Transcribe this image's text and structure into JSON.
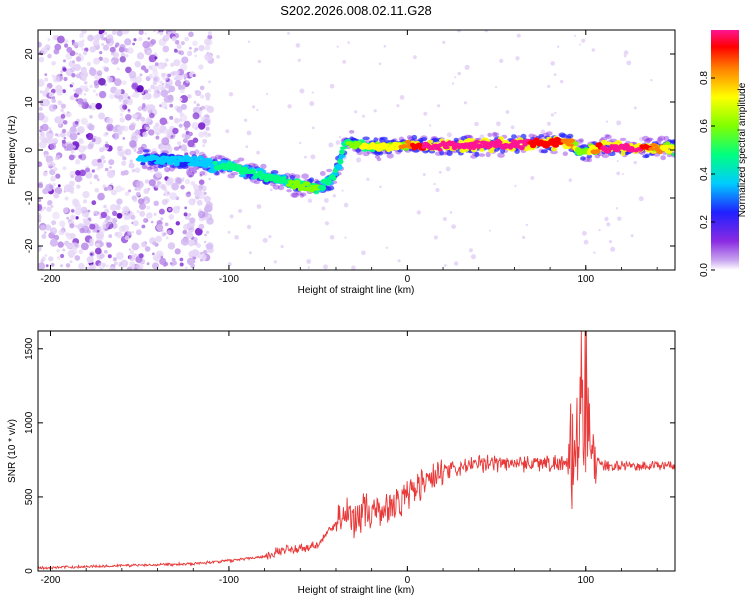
{
  "title": "S202.2026.008.02.11.G28",
  "chart_data": [
    {
      "type": "heatmap",
      "title": "S202.2026.008.02.11.G28",
      "xlabel": "Height of straight line (km)",
      "ylabel": "Frequency (Hz)",
      "xlim": [
        -207,
        150
      ],
      "ylim": [
        -25,
        25
      ],
      "xticks": [
        "-200",
        "-100",
        "0",
        "100"
      ],
      "xtick_values": [
        -200,
        -100,
        0,
        100
      ],
      "yticks": [
        "20",
        "10",
        "0",
        "-10",
        "-20"
      ],
      "ytick_values": [
        20,
        10,
        0,
        -10,
        -20
      ],
      "colorbar": {
        "label": "Normalized spectral amplitude",
        "range": [
          0,
          1
        ],
        "ticks": [
          "0.0",
          "0.2",
          "0.4",
          "0.6",
          "0.8"
        ],
        "tick_values": [
          0.0,
          0.2,
          0.4,
          0.6,
          0.8
        ]
      },
      "ridge": {
        "x": [
          -150,
          -130,
          -110,
          -100,
          -90,
          -80,
          -70,
          -60,
          -50,
          -42,
          -38,
          -35,
          -32,
          -25,
          -15,
          -5,
          0,
          10,
          20,
          40,
          60,
          80,
          92,
          97,
          100,
          110,
          130,
          150
        ],
        "freq": [
          -2,
          -2,
          -3,
          -3.5,
          -4.5,
          -5.5,
          -6.5,
          -7.5,
          -8,
          -6,
          -3,
          2,
          1.5,
          1,
          0.5,
          0.8,
          1,
          0.8,
          0.8,
          1,
          1.2,
          1.5,
          1.5,
          -0.5,
          -0.5,
          0.5,
          0.5,
          0.2
        ],
        "amplitude": [
          0.3,
          0.3,
          0.35,
          0.4,
          0.4,
          0.45,
          0.45,
          0.55,
          0.5,
          0.4,
          0.35,
          0.45,
          0.5,
          0.6,
          0.65,
          0.7,
          0.8,
          0.95,
          0.95,
          0.95,
          0.95,
          0.9,
          0.8,
          0.5,
          0.55,
          0.95,
          0.95,
          0.6
        ]
      }
    },
    {
      "type": "line",
      "xlabel": "Height of straight line (km)",
      "ylabel": "SNR (10 * v/v)",
      "xlim": [
        -207,
        150
      ],
      "ylim": [
        0,
        1620
      ],
      "xticks": [
        "-200",
        "-100",
        "0",
        "100"
      ],
      "xtick_values": [
        -200,
        -100,
        0,
        100
      ],
      "yticks": [
        "0",
        "500",
        "1000",
        "1500"
      ],
      "ytick_values": [
        0,
        500,
        1000,
        1500
      ],
      "color": "#e83838",
      "series": [
        {
          "name": "SNR",
          "x": [
            -207,
            -180,
            -150,
            -120,
            -100,
            -80,
            -70,
            -60,
            -50,
            -45,
            -40,
            -35,
            -30,
            -25,
            -20,
            -15,
            -10,
            -5,
            0,
            5,
            10,
            20,
            30,
            40,
            50,
            60,
            70,
            80,
            90,
            95,
            98,
            100,
            102,
            105,
            110,
            120,
            130,
            150
          ],
          "y": [
            20,
            30,
            40,
            50,
            70,
            100,
            140,
            150,
            170,
            260,
            310,
            390,
            360,
            400,
            380,
            400,
            440,
            470,
            510,
            560,
            600,
            660,
            700,
            720,
            730,
            730,
            730,
            730,
            720,
            780,
            1150,
            820,
            1000,
            760,
            710,
            710,
            710,
            710
          ]
        }
      ]
    }
  ],
  "colors": {
    "line": "#e83838",
    "scale": [
      "#ffffff",
      "#c9a6f0",
      "#8a2be2",
      "#2020ff",
      "#00ccff",
      "#00ff80",
      "#80ff00",
      "#ffff00",
      "#ff8000",
      "#ff0000",
      "#ff1493"
    ]
  }
}
